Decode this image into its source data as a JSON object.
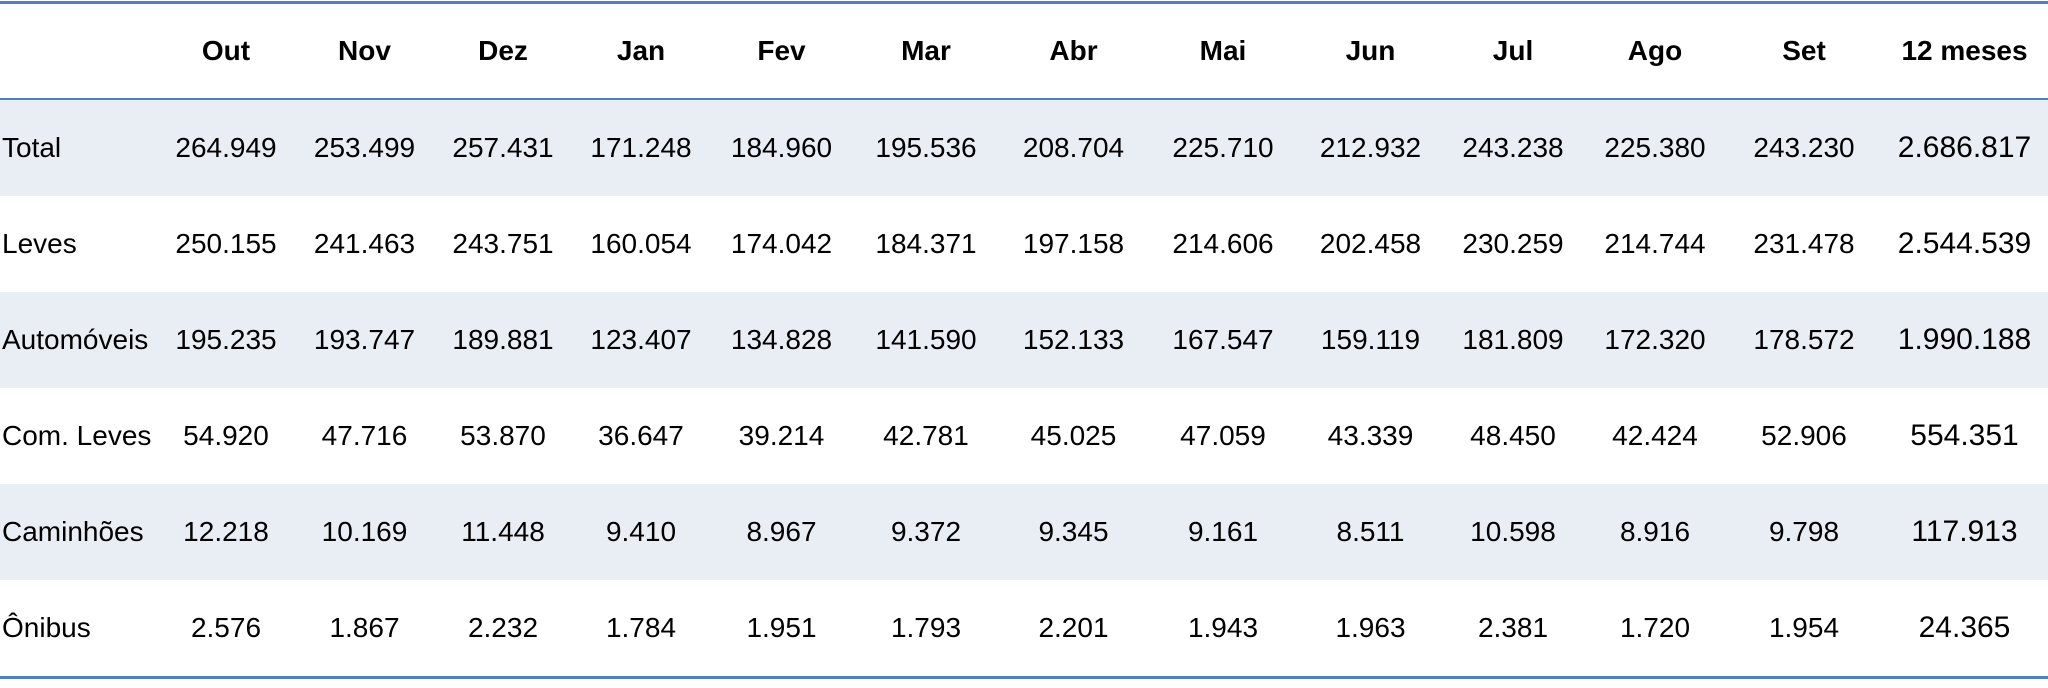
{
  "table": {
    "columns": [
      "Out",
      "Nov",
      "Dez",
      "Jan",
      "Fev",
      "Mar",
      "Abr",
      "Mai",
      "Jun",
      "Jul",
      "Ago",
      "Set",
      "12 meses"
    ],
    "rows": [
      {
        "label": "Total",
        "values": [
          "264.949",
          "253.499",
          "257.431",
          "171.248",
          "184.960",
          "195.536",
          "208.704",
          "225.710",
          "212.932",
          "243.238",
          "225.380",
          "243.230",
          "2.686.817"
        ]
      },
      {
        "label": "Leves",
        "values": [
          "250.155",
          "241.463",
          "243.751",
          "160.054",
          "174.042",
          "184.371",
          "197.158",
          "214.606",
          "202.458",
          "230.259",
          "214.744",
          "231.478",
          "2.544.539"
        ]
      },
      {
        "label": "Automóveis",
        "values": [
          "195.235",
          "193.747",
          "189.881",
          "123.407",
          "134.828",
          "141.590",
          "152.133",
          "167.547",
          "159.119",
          "181.809",
          "172.320",
          "178.572",
          "1.990.188"
        ]
      },
      {
        "label": "Com. Leves",
        "values": [
          "54.920",
          "47.716",
          "53.870",
          "36.647",
          "39.214",
          "42.781",
          "45.025",
          "47.059",
          "43.339",
          "48.450",
          "42.424",
          "52.906",
          "554.351"
        ]
      },
      {
        "label": "Caminhões",
        "values": [
          "12.218",
          "10.169",
          "11.448",
          "9.410",
          "8.967",
          "9.372",
          "9.345",
          "9.161",
          "8.511",
          "10.598",
          "8.916",
          "9.798",
          "117.913"
        ]
      },
      {
        "label": "Ônibus",
        "values": [
          "2.576",
          "1.867",
          "2.232",
          "1.784",
          "1.951",
          "1.793",
          "2.201",
          "1.943",
          "1.963",
          "2.381",
          "1.720",
          "1.954",
          "24.365"
        ]
      }
    ]
  }
}
